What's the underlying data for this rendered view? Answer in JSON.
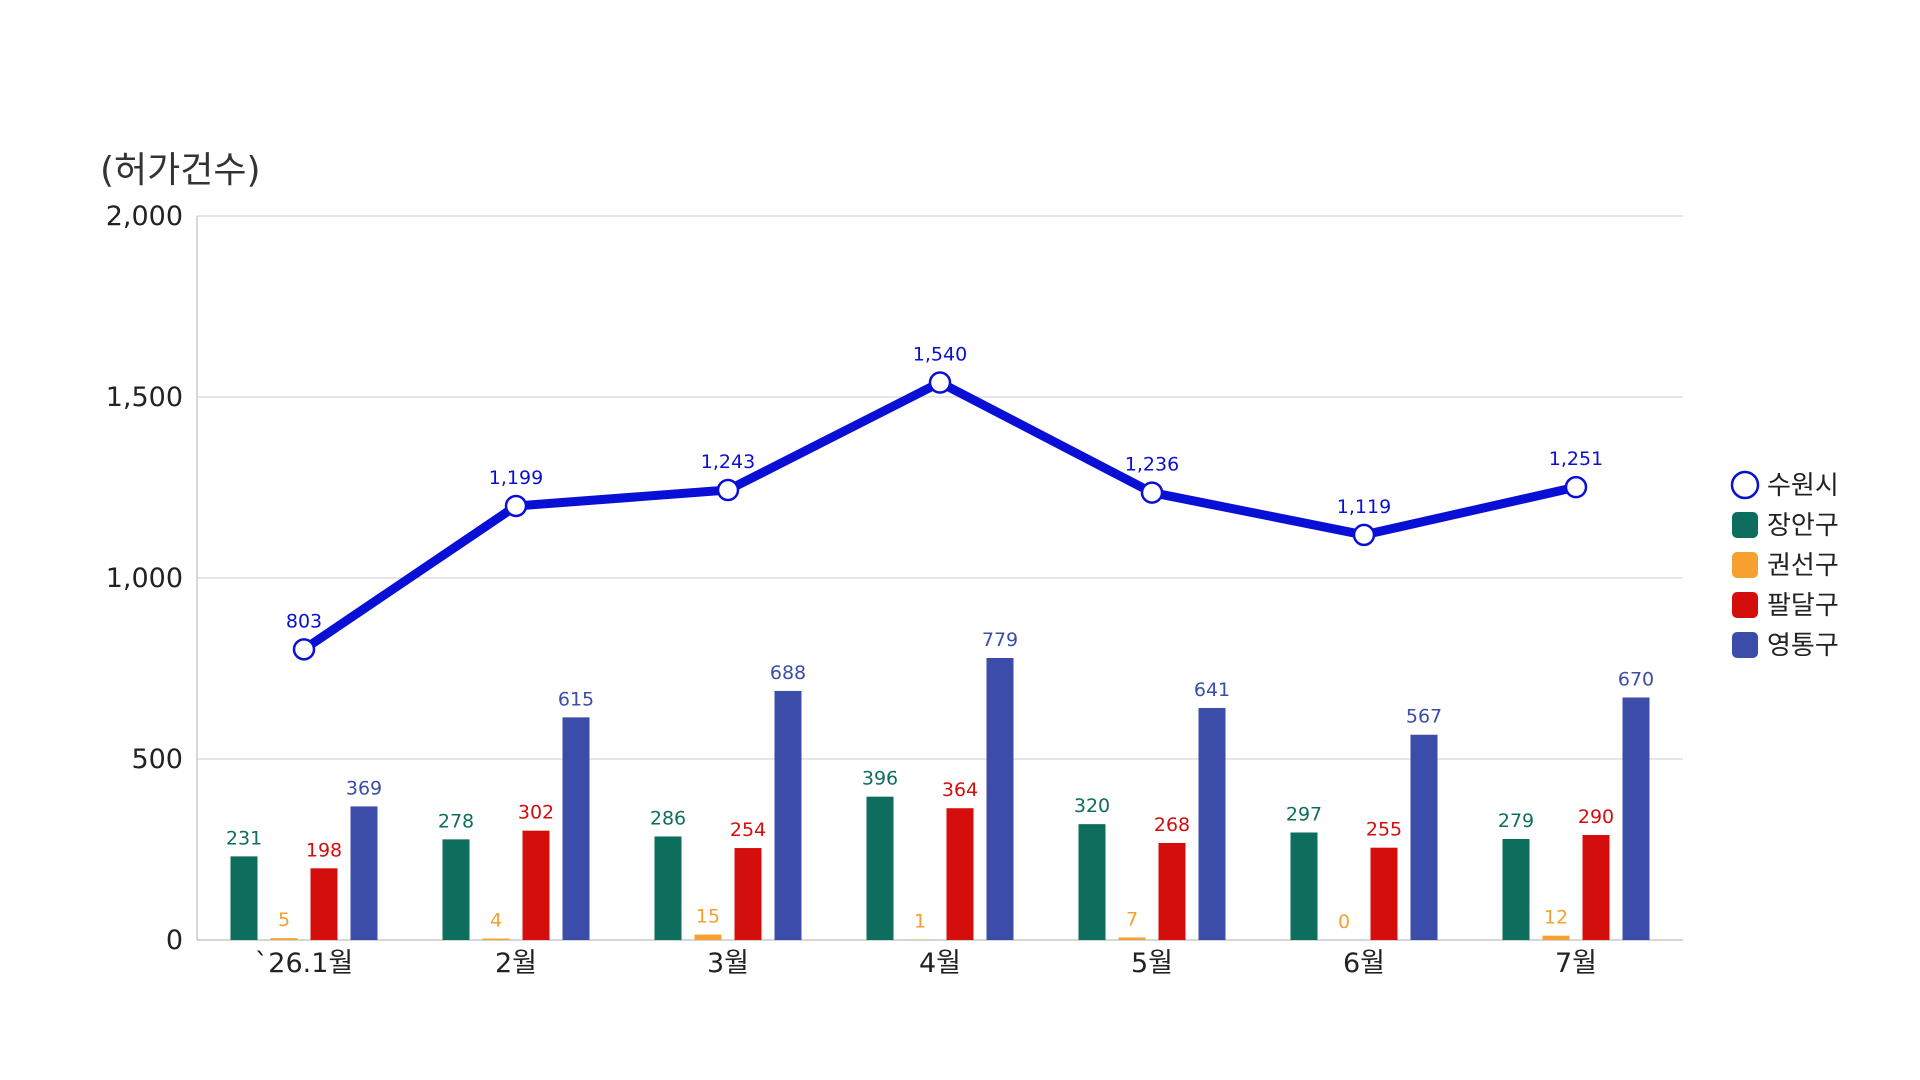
{
  "chart_data": {
    "type": "bar",
    "unit_label": "(허가건수)",
    "categories": [
      "`26.1월",
      "2월",
      "3월",
      "4월",
      "5월",
      "6월",
      "7월"
    ],
    "ylim": [
      0,
      2000
    ],
    "yticks": [
      "0",
      "500",
      "1,000",
      "1,500",
      "2,000"
    ],
    "ytick_values": [
      0,
      500,
      1000,
      1500,
      2000
    ],
    "grid": true,
    "legend_position": "right",
    "bar_series": [
      {
        "name": "장안구",
        "color": "#0e6e5e",
        "values": [
          231,
          278,
          286,
          396,
          320,
          297,
          279
        ],
        "labels": [
          "231",
          "278",
          "286",
          "396",
          "320",
          "297",
          "279"
        ]
      },
      {
        "name": "권선구",
        "color": "#f5a02f",
        "values": [
          5,
          4,
          15,
          1,
          7,
          0,
          12
        ],
        "labels": [
          "5",
          "4",
          "15",
          "1",
          "7",
          "0",
          "12"
        ]
      },
      {
        "name": "팔달구",
        "color": "#d40d0d",
        "values": [
          198,
          302,
          254,
          364,
          268,
          255,
          290
        ],
        "labels": [
          "198",
          "302",
          "254",
          "364",
          "268",
          "255",
          "290"
        ]
      },
      {
        "name": "영통구",
        "color": "#3b4da8",
        "values": [
          369,
          615,
          688,
          779,
          641,
          567,
          670
        ],
        "labels": [
          "369",
          "615",
          "688",
          "779",
          "641",
          "567",
          "670"
        ]
      }
    ],
    "line_series": {
      "name": "수원시",
      "color": "#0a0fd6",
      "values": [
        803,
        1199,
        1243,
        1540,
        1236,
        1119,
        1251
      ],
      "labels": [
        "803",
        "1,199",
        "1,243",
        "1,540",
        "1,236",
        "1,119",
        "1,251"
      ]
    }
  }
}
